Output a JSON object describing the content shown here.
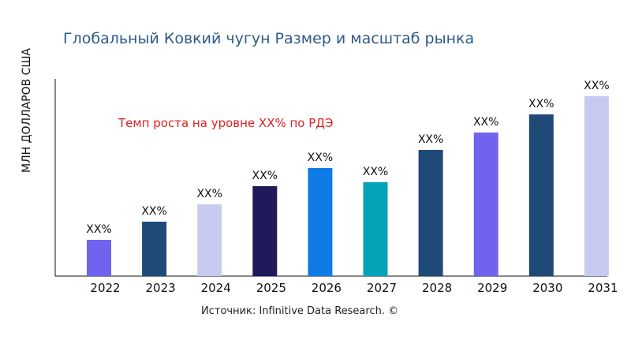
{
  "chart_data": {
    "type": "bar",
    "title": "Глобальный Ковкий чугун Размер и масштаб рынка",
    "ylabel": "МЛН ДОЛЛАРОВ США",
    "xlabel": "",
    "categories": [
      "2022",
      "2023",
      "2024",
      "2025",
      "2026",
      "2027",
      "2028",
      "2029",
      "2030",
      "2031"
    ],
    "values": [
      46,
      69,
      91,
      114,
      137,
      119,
      160,
      182,
      205,
      228
    ],
    "data_labels": [
      "XX%",
      "XX%",
      "XX%",
      "XX%",
      "XX%",
      "XX%",
      "XX%",
      "XX%",
      "XX%",
      "XX%"
    ],
    "colors": [
      "#7063ee",
      "#1f4a78",
      "#c8cbef",
      "#1f1a5a",
      "#0e7be6",
      "#05a3b8",
      "#1f4a78",
      "#7063ee",
      "#1f4a78",
      "#c8cbef"
    ],
    "annotation": "Темп роста на уровне XX% по РДЭ",
    "annotation_color": "#e02020",
    "grid": false,
    "ylim": [
      0,
      250
    ]
  },
  "source": "Источник: Infinitive Data Research. ©"
}
